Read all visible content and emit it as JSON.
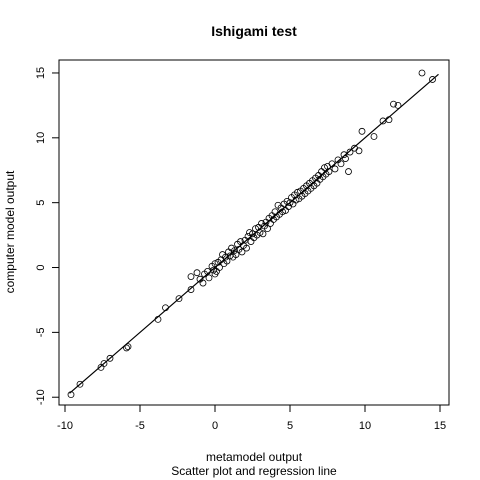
{
  "chart_data": {
    "type": "scatter",
    "title": "Ishigami test",
    "xlabel": "metamodel output",
    "subtitle": "Scatter plot and regression line",
    "ylabel": "computer model output",
    "xlim": [
      -10.4,
      15.6
    ],
    "ylim": [
      -10.6,
      16.0
    ],
    "xticks": [
      "-10",
      "-5",
      "0",
      "5",
      "10",
      "15"
    ],
    "yticks": [
      "-10",
      "-5",
      "0",
      "5",
      "10",
      "15"
    ],
    "grid": false,
    "regression_line": {
      "x": [
        -9.7,
        14.9
      ],
      "y": [
        -9.7,
        14.9
      ]
    },
    "points": [
      [
        -9.6,
        -9.8
      ],
      [
        -9.0,
        -9.0
      ],
      [
        -7.4,
        -7.4
      ],
      [
        -7.6,
        -7.7
      ],
      [
        -7.0,
        -7.0
      ],
      [
        -5.8,
        -6.1
      ],
      [
        -5.9,
        -6.2
      ],
      [
        -3.8,
        -4.0
      ],
      [
        -3.3,
        -3.1
      ],
      [
        -2.4,
        -2.4
      ],
      [
        -1.6,
        -1.7
      ],
      [
        -1.6,
        -0.7
      ],
      [
        -1.2,
        -0.4
      ],
      [
        -1.0,
        -0.9
      ],
      [
        -0.8,
        -1.2
      ],
      [
        -0.7,
        -0.5
      ],
      [
        -0.5,
        -0.3
      ],
      [
        -0.4,
        -0.8
      ],
      [
        -0.2,
        0.1
      ],
      [
        -0.1,
        -0.2
      ],
      [
        0.0,
        0.3
      ],
      [
        0.0,
        -0.5
      ],
      [
        0.1,
        -0.3
      ],
      [
        0.2,
        0.4
      ],
      [
        0.3,
        0.0
      ],
      [
        0.4,
        0.6
      ],
      [
        0.5,
        1.0
      ],
      [
        0.6,
        0.3
      ],
      [
        0.7,
        0.8
      ],
      [
        0.8,
        0.5
      ],
      [
        0.9,
        1.2
      ],
      [
        1.0,
        0.9
      ],
      [
        1.1,
        1.5
      ],
      [
        1.2,
        0.8
      ],
      [
        1.3,
        1.3
      ],
      [
        1.4,
        1.0
      ],
      [
        1.5,
        1.8
      ],
      [
        1.6,
        1.4
      ],
      [
        1.7,
        2.0
      ],
      [
        1.8,
        1.2
      ],
      [
        1.9,
        1.7
      ],
      [
        2.0,
        2.1
      ],
      [
        2.1,
        1.5
      ],
      [
        2.2,
        2.4
      ],
      [
        2.3,
        2.7
      ],
      [
        2.4,
        2.0
      ],
      [
        2.5,
        2.6
      ],
      [
        2.6,
        2.3
      ],
      [
        2.7,
        3.0
      ],
      [
        2.8,
        2.5
      ],
      [
        2.9,
        3.1
      ],
      [
        3.0,
        2.7
      ],
      [
        3.1,
        3.4
      ],
      [
        3.2,
        2.6
      ],
      [
        3.3,
        3.2
      ],
      [
        3.4,
        3.5
      ],
      [
        3.5,
        3.0
      ],
      [
        3.6,
        3.8
      ],
      [
        3.7,
        3.4
      ],
      [
        3.8,
        4.0
      ],
      [
        3.9,
        3.7
      ],
      [
        4.0,
        4.3
      ],
      [
        4.1,
        3.9
      ],
      [
        4.2,
        4.8
      ],
      [
        4.3,
        4.1
      ],
      [
        4.4,
        4.6
      ],
      [
        4.5,
        4.3
      ],
      [
        4.6,
        4.9
      ],
      [
        4.7,
        4.4
      ],
      [
        4.8,
        5.1
      ],
      [
        4.9,
        4.7
      ],
      [
        5.0,
        5.0
      ],
      [
        5.1,
        5.4
      ],
      [
        5.2,
        4.9
      ],
      [
        5.3,
        5.6
      ],
      [
        5.4,
        5.2
      ],
      [
        5.5,
        5.8
      ],
      [
        5.6,
        5.3
      ],
      [
        5.7,
        5.9
      ],
      [
        5.8,
        5.5
      ],
      [
        5.9,
        6.1
      ],
      [
        6.0,
        5.7
      ],
      [
        6.1,
        6.3
      ],
      [
        6.2,
        5.9
      ],
      [
        6.3,
        6.5
      ],
      [
        6.4,
        6.1
      ],
      [
        6.5,
        6.7
      ],
      [
        6.6,
        6.3
      ],
      [
        6.7,
        6.9
      ],
      [
        6.8,
        6.5
      ],
      [
        6.9,
        7.1
      ],
      [
        7.0,
        6.8
      ],
      [
        7.1,
        7.4
      ],
      [
        7.2,
        7.0
      ],
      [
        7.3,
        7.7
      ],
      [
        7.4,
        7.2
      ],
      [
        7.5,
        7.8
      ],
      [
        7.6,
        7.4
      ],
      [
        7.8,
        8.0
      ],
      [
        8.0,
        7.6
      ],
      [
        8.2,
        8.3
      ],
      [
        8.4,
        8.0
      ],
      [
        8.6,
        8.7
      ],
      [
        8.7,
        8.4
      ],
      [
        8.9,
        7.4
      ],
      [
        9.0,
        8.9
      ],
      [
        9.3,
        9.2
      ],
      [
        9.6,
        9.0
      ],
      [
        9.8,
        10.5
      ],
      [
        10.6,
        10.1
      ],
      [
        11.2,
        11.3
      ],
      [
        11.6,
        11.4
      ],
      [
        11.9,
        12.6
      ],
      [
        12.2,
        12.5
      ],
      [
        13.8,
        15.0
      ],
      [
        14.5,
        14.5
      ]
    ]
  }
}
